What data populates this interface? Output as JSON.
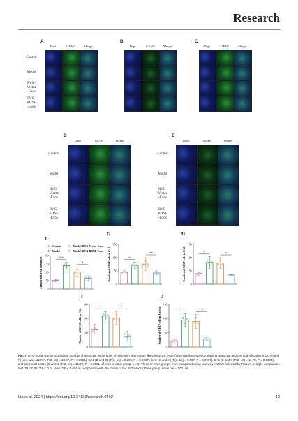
{
  "header": {
    "journal": "Research"
  },
  "figure": {
    "top_panels": [
      {
        "label": "A",
        "columns": [
          "Dapi",
          "GFAP",
          "Merge"
        ]
      },
      {
        "label": "B",
        "columns": [
          "Dapi",
          "GFAP",
          "Merge"
        ]
      },
      {
        "label": "C",
        "columns": [
          "Dapi",
          "GFAP",
          "Merge"
        ]
      }
    ],
    "mid_panels": [
      {
        "label": "D",
        "columns": [
          "Dapi",
          "GFAP",
          "Merge"
        ]
      },
      {
        "label": "E",
        "columns": [
          "Dapi",
          "GFAP",
          "Merge"
        ]
      }
    ],
    "row_labels": [
      "Control",
      "Model",
      "RVG-\nVector\n-Exos",
      "RVG-\nBDNF\n-Exos"
    ],
    "legend": [
      "Control",
      "Model+RVG-Vector-Exos",
      "Model",
      "Model+RVG-BDNF-Exos"
    ],
    "colors": {
      "control": "#c77ab5",
      "model": "#2e9b4f",
      "vector": "#e8843a",
      "bdnf": "#5aa7d6"
    }
  },
  "chart_data": [
    {
      "type": "bar",
      "panel": "F",
      "ylabel": "Number of GFAP cells in DG",
      "ylim": [
        0,
        200
      ],
      "yticks": [
        0,
        50,
        100,
        150,
        200
      ],
      "values": [
        52,
        140,
        102,
        65
      ],
      "errors": [
        8,
        20,
        28,
        14
      ],
      "sig": [
        {
          "from": 0,
          "to": 1,
          "text": "***"
        },
        {
          "from": 2,
          "to": 3,
          "text": "*"
        }
      ]
    },
    {
      "type": "bar",
      "panel": "G",
      "ylabel": "Number of GFAP cells in CA1",
      "ylim": [
        0,
        150
      ],
      "yticks": [
        0,
        50,
        100,
        150
      ],
      "values": [
        45,
        71,
        76,
        42
      ],
      "errors": [
        7,
        12,
        24,
        8
      ],
      "sig": [
        {
          "from": 0,
          "to": 1,
          "text": "*"
        },
        {
          "from": 2,
          "to": 3,
          "text": "**"
        }
      ]
    },
    {
      "type": "bar",
      "panel": "H",
      "ylabel": "Number of GFAP cells in CA2",
      "ylim": [
        0,
        150
      ],
      "yticks": [
        0,
        50,
        100,
        150
      ],
      "values": [
        40,
        82,
        80,
        35
      ],
      "errors": [
        7,
        22,
        20,
        3
      ],
      "sig": [
        {
          "from": 0,
          "to": 1,
          "text": "*"
        },
        {
          "from": 2,
          "to": 3,
          "text": "*"
        }
      ]
    },
    {
      "type": "bar",
      "panel": "I",
      "ylabel": "Number of GFAP cells in CA3",
      "ylim": [
        0,
        300
      ],
      "yticks": [
        0,
        100,
        200,
        300
      ],
      "values": [
        125,
        220,
        205,
        75
      ],
      "errors": [
        35,
        30,
        45,
        35
      ],
      "sig": [
        {
          "from": 0,
          "to": 1,
          "text": "*"
        },
        {
          "from": 2,
          "to": 3,
          "text": "*"
        }
      ]
    },
    {
      "type": "bar",
      "panel": "J",
      "ylabel": "Number of GFAP cells in Cortex",
      "ylim": [
        0,
        150
      ],
      "yticks": [
        0,
        50,
        100,
        150
      ],
      "values": [
        22,
        95,
        90,
        28
      ],
      "errors": [
        5,
        22,
        25,
        5
      ],
      "sig": [
        {
          "from": 0,
          "to": 1,
          "text": "**"
        },
        {
          "from": 2,
          "to": 3,
          "text": "***"
        }
      ]
    }
  ],
  "caption": {
    "fig": "Fig. 7.",
    "text": "RVG-BDNF-Exos reduced the number of astrocyte in the brain of mice with depression like behaviors. (A to J) Immunofluorescence staining astrocyte and cell quantification in DG (A and F) [one-way ANOVA, F(3, 16) = 13.87, P < 0.0001], CA1 (B and G) [F(3, 16) = 9.295, P = 0.0007], CA2 (C and H) [F(3, 16) = 9.597, P = 0.0007], CA3 (D and I) [F(3, 16) = 11.70, P = 0.0003], and prefrontal cortex (E and J) [F(3, 16) = 15.72, P < 0.0001] of mice in each group, n = 5. Three or more groups were compared using one-way ANOVA followed by Tukey's multiple comparison test. *P < 0.05; **P < 0.01, and ***P < 0.001 in comparison with the model or the RVG/Vector-Exos group, scale bar = 100 μm."
  },
  "footer": {
    "citation": "Liu et al. 2024 | https://doi.org/10.34133/research.0402",
    "page": "10"
  }
}
